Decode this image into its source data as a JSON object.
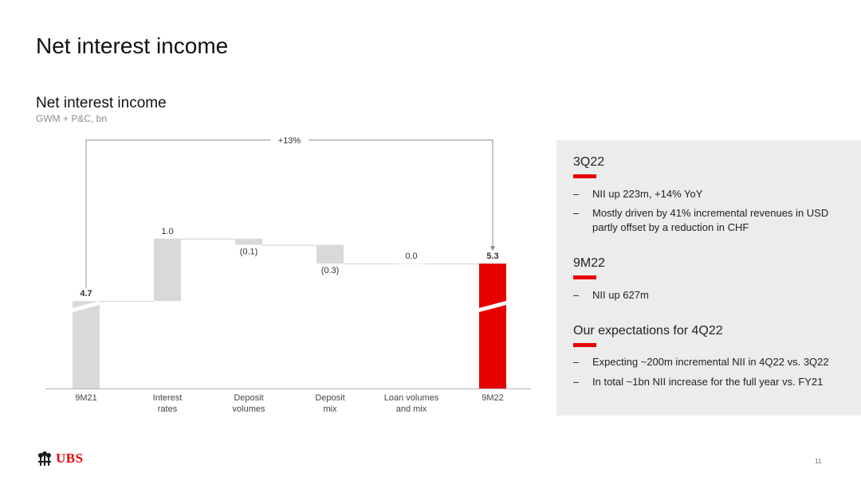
{
  "page": {
    "title": "Net interest income",
    "page_number": "11"
  },
  "logo": {
    "text": "UBS"
  },
  "chart_data": {
    "type": "waterfall",
    "title": "Net interest income",
    "subtitle": "GWM + P&C, bn",
    "categories": [
      "9M21",
      "Interest\nrates",
      "Deposit\nvolumes",
      "Deposit\nmix",
      "Loan volumes\nand mix",
      "9M22"
    ],
    "values": [
      4.7,
      1.0,
      -0.1,
      -0.3,
      0.0,
      5.3
    ],
    "kinds": [
      "total",
      "delta",
      "delta",
      "delta",
      "delta",
      "total"
    ],
    "labels": [
      "4.7",
      "1.0",
      "(0.1)",
      "(0.3)",
      "0.0",
      "5.3"
    ],
    "bar_colors": [
      "#d9d9d9",
      "#d9d9d9",
      "#d9d9d9",
      "#d9d9d9",
      "#d9d9d9",
      "#e60000"
    ],
    "axis_break": true,
    "annotation": "+13%",
    "ylim": [
      3.3,
      5.5
    ]
  },
  "panel": {
    "sections": [
      {
        "title": "3Q22",
        "bullets": [
          "NII up 223m, +14% YoY",
          "Mostly driven by 41% incremental revenues in USD partly offset by a reduction in CHF"
        ]
      },
      {
        "title": "9M22",
        "bullets": [
          "NII up 627m"
        ]
      },
      {
        "title": "Our expectations for 4Q22",
        "bullets": [
          "Expecting ~200m incremental NII in 4Q22 vs. 3Q22",
          "In total ~1bn NII increase for the full year vs. FY21"
        ]
      }
    ],
    "dash": "–",
    "accent_color": "#e60000",
    "background_color": "#ececec"
  }
}
